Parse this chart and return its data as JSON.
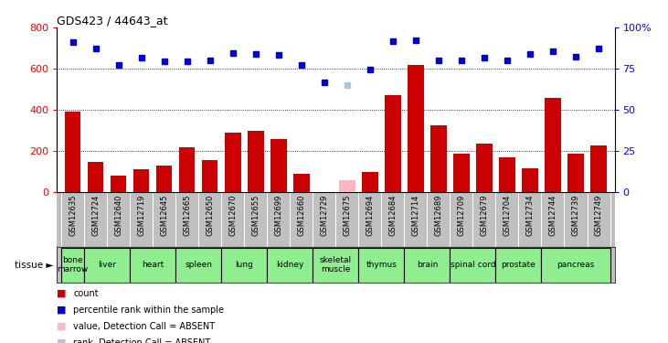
{
  "title": "GDS423 / 44643_at",
  "gsm_labels": [
    "GSM12635",
    "GSM12724",
    "GSM12640",
    "GSM12719",
    "GSM12645",
    "GSM12665",
    "GSM12650",
    "GSM12670",
    "GSM12655",
    "GSM12699",
    "GSM12660",
    "GSM12729",
    "GSM12675",
    "GSM12694",
    "GSM12684",
    "GSM12714",
    "GSM12689",
    "GSM12709",
    "GSM12679",
    "GSM12704",
    "GSM12734",
    "GSM12744",
    "GSM12739",
    "GSM12749"
  ],
  "bar_values": [
    390,
    145,
    80,
    110,
    130,
    220,
    155,
    290,
    300,
    260,
    90,
    null,
    null,
    100,
    470,
    620,
    325,
    185,
    235,
    170,
    115,
    460,
    185,
    225
  ],
  "bar_absent": [
    false,
    false,
    false,
    false,
    false,
    false,
    false,
    false,
    false,
    false,
    false,
    false,
    true,
    false,
    false,
    false,
    false,
    false,
    false,
    false,
    false,
    false,
    false,
    false
  ],
  "absent_bar_value": 60,
  "percentile_values": [
    730,
    700,
    620,
    655,
    635,
    635,
    640,
    675,
    670,
    665,
    620,
    535,
    null,
    595,
    735,
    740,
    640,
    640,
    655,
    640,
    670,
    685,
    660,
    700
  ],
  "rank_absent_value": 520,
  "rank_absent_index": 12,
  "tissue_groups": [
    {
      "label": "bone\nmarrow",
      "start": 0,
      "end": 1,
      "color": "#90EE90"
    },
    {
      "label": "liver",
      "start": 1,
      "end": 3,
      "color": "#90EE90"
    },
    {
      "label": "heart",
      "start": 3,
      "end": 5,
      "color": "#90EE90"
    },
    {
      "label": "spleen",
      "start": 5,
      "end": 7,
      "color": "#90EE90"
    },
    {
      "label": "lung",
      "start": 7,
      "end": 9,
      "color": "#90EE90"
    },
    {
      "label": "kidney",
      "start": 9,
      "end": 11,
      "color": "#90EE90"
    },
    {
      "label": "skeletal\nmuscle",
      "start": 11,
      "end": 13,
      "color": "#90EE90"
    },
    {
      "label": "thymus",
      "start": 13,
      "end": 15,
      "color": "#90EE90"
    },
    {
      "label": "brain",
      "start": 15,
      "end": 17,
      "color": "#90EE90"
    },
    {
      "label": "spinal cord",
      "start": 17,
      "end": 19,
      "color": "#90EE90"
    },
    {
      "label": "prostate",
      "start": 19,
      "end": 21,
      "color": "#90EE90"
    },
    {
      "label": "pancreas",
      "start": 21,
      "end": 24,
      "color": "#90EE90"
    }
  ],
  "bar_color": "#CC0000",
  "absent_bar_color": "#FFB6C1",
  "dot_color": "#0000CC",
  "absent_dot_color": "#B0C4DE",
  "ylim_left": [
    0,
    800
  ],
  "yticks_left": [
    0,
    200,
    400,
    600,
    800
  ],
  "yticks_right_labels": [
    "0",
    "25",
    "50",
    "75",
    "100%"
  ],
  "yticks_right_vals": [
    0,
    200,
    400,
    600,
    800
  ],
  "grid_values": [
    200,
    400,
    600
  ],
  "gsm_bg_color": "#C0C0C0",
  "tissue_left_label": "tissue ►",
  "legend_items": [
    {
      "color": "#CC0000",
      "label": "count"
    },
    {
      "color": "#0000CC",
      "label": "percentile rank within the sample"
    },
    {
      "color": "#FFB6C1",
      "label": "value, Detection Call = ABSENT"
    },
    {
      "color": "#B0C4DE",
      "label": "rank, Detection Call = ABSENT"
    }
  ]
}
